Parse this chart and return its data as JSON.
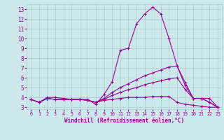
{
  "title": "",
  "xlabel": "Windchill (Refroidissement éolien,°C)",
  "background_color": "#cce8ea",
  "line_color": "#990099",
  "grid_color": "#aacccc",
  "xlim": [
    -0.5,
    23.5
  ],
  "ylim": [
    2.8,
    13.5
  ],
  "xticks": [
    0,
    1,
    2,
    3,
    4,
    5,
    6,
    7,
    8,
    9,
    10,
    11,
    12,
    13,
    14,
    15,
    16,
    17,
    18,
    19,
    20,
    21,
    22,
    23
  ],
  "yticks": [
    3,
    4,
    5,
    6,
    7,
    8,
    9,
    10,
    11,
    12,
    13
  ],
  "line1_x": [
    0,
    1,
    2,
    3,
    4,
    5,
    6,
    7,
    8,
    9,
    10,
    11,
    12,
    13,
    14,
    15,
    16,
    17,
    18,
    19,
    20,
    21,
    22,
    23
  ],
  "line1_y": [
    3.8,
    3.5,
    4.0,
    4.0,
    3.9,
    3.8,
    3.8,
    3.8,
    3.3,
    4.3,
    5.6,
    8.8,
    9.0,
    11.5,
    12.5,
    13.2,
    12.5,
    10.0,
    7.2,
    5.5,
    3.9,
    3.9,
    3.9,
    3.0
  ],
  "line2_x": [
    0,
    1,
    2,
    3,
    4,
    5,
    6,
    7,
    8,
    9,
    10,
    11,
    12,
    13,
    14,
    15,
    16,
    17,
    18,
    19,
    20,
    21,
    22,
    23
  ],
  "line2_y": [
    3.8,
    3.5,
    3.9,
    3.8,
    3.8,
    3.8,
    3.8,
    3.7,
    3.5,
    3.9,
    4.5,
    5.0,
    5.4,
    5.8,
    6.2,
    6.5,
    6.8,
    7.1,
    7.2,
    5.2,
    3.9,
    3.9,
    3.5,
    3.0
  ],
  "line3_x": [
    0,
    1,
    2,
    3,
    4,
    5,
    6,
    7,
    8,
    9,
    10,
    11,
    12,
    13,
    14,
    15,
    16,
    17,
    18,
    19,
    20,
    21,
    22,
    23
  ],
  "line3_y": [
    3.8,
    3.5,
    3.9,
    3.8,
    3.8,
    3.8,
    3.8,
    3.7,
    3.5,
    3.8,
    4.2,
    4.5,
    4.8,
    5.0,
    5.3,
    5.5,
    5.7,
    5.9,
    6.0,
    4.8,
    3.9,
    3.9,
    3.5,
    3.0
  ],
  "line4_x": [
    0,
    1,
    2,
    3,
    4,
    5,
    6,
    7,
    8,
    9,
    10,
    11,
    12,
    13,
    14,
    15,
    16,
    17,
    18,
    19,
    20,
    21,
    22,
    23
  ],
  "line4_y": [
    3.8,
    3.5,
    3.9,
    3.8,
    3.8,
    3.8,
    3.8,
    3.7,
    3.5,
    3.7,
    3.8,
    3.9,
    4.0,
    4.0,
    4.0,
    4.1,
    4.1,
    4.1,
    3.5,
    3.3,
    3.2,
    3.1,
    3.0,
    3.0
  ]
}
